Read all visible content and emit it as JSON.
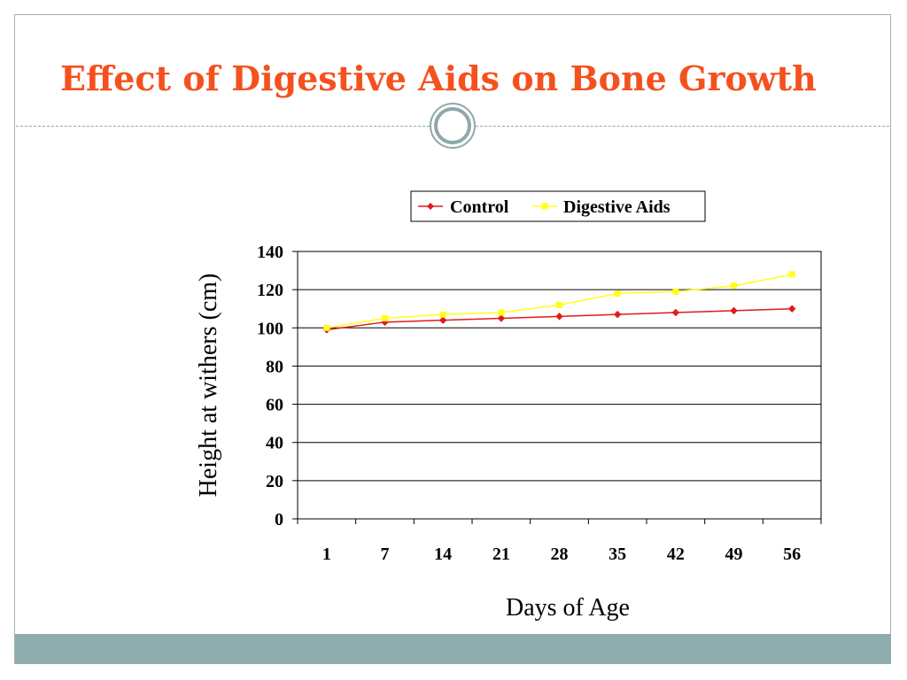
{
  "slide": {
    "title": "Effect of Digestive Aids on Bone Growth"
  },
  "colors": {
    "title": "#f4511e",
    "control": "#e01b1b",
    "digestive_aids": "#ffff1a",
    "footer": "#8eacac"
  },
  "chart_data": {
    "type": "line",
    "categories": [
      "1",
      "7",
      "14",
      "21",
      "28",
      "35",
      "42",
      "49",
      "56"
    ],
    "series": [
      {
        "name": "Control",
        "values": [
          99,
          103,
          104,
          105,
          106,
          107,
          108,
          109,
          110
        ],
        "marker": "diamond"
      },
      {
        "name": "Digestive Aids",
        "values": [
          100,
          105,
          107,
          108,
          112,
          118,
          119,
          122,
          128
        ],
        "marker": "square"
      }
    ],
    "xlabel": "Days of Age",
    "ylabel": "Height at withers (cm)",
    "ylim": [
      0,
      140
    ],
    "yticks": [
      0,
      20,
      40,
      60,
      80,
      100,
      120,
      140
    ],
    "grid": true,
    "legend_position": "top-right"
  }
}
